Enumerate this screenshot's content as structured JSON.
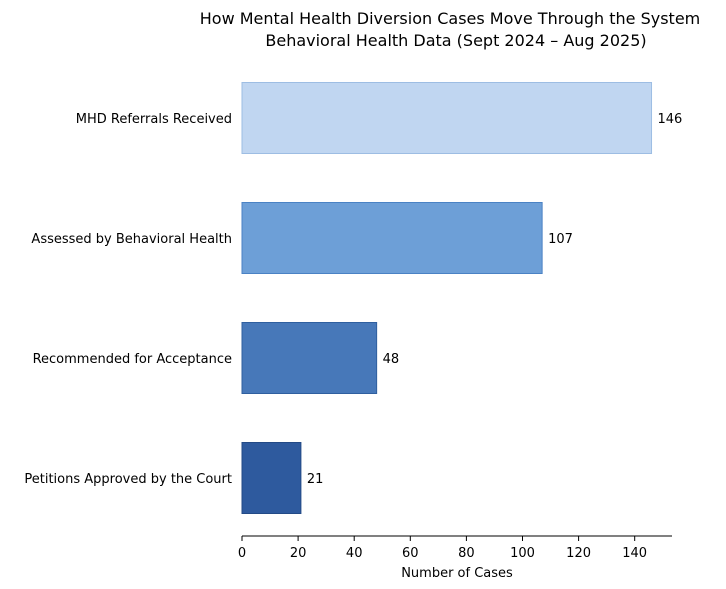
{
  "chart_data": {
    "type": "bar",
    "orientation": "horizontal",
    "title": "How Mental Health Diversion Cases Move Through the System",
    "subtitle": "Behavioral Health Data (Sept 2024 – Aug 2025)",
    "xlabel": "Number of Cases",
    "ylabel": "",
    "categories": [
      "MHD Referrals Received",
      "Assessed by Behavioral Health",
      "Recommended for Acceptance",
      "Petitions Approved by the Court"
    ],
    "values": [
      146,
      107,
      48,
      21
    ],
    "value_labels": [
      "146",
      "107",
      "48",
      "21"
    ],
    "colors": [
      "#c0d6f1",
      "#6d9fd7",
      "#4778b9",
      "#2e5a9e"
    ],
    "edge_colors": [
      "#9dbde3",
      "#4a82c4",
      "#2f5f9f",
      "#234a86"
    ],
    "xlim": [
      0,
      153.3
    ],
    "xticks": [
      0,
      20,
      40,
      60,
      80,
      100,
      120,
      140
    ],
    "xtick_labels": [
      "0",
      "20",
      "40",
      "60",
      "80",
      "100",
      "120",
      "140"
    ],
    "grid": false,
    "legend": "none"
  }
}
